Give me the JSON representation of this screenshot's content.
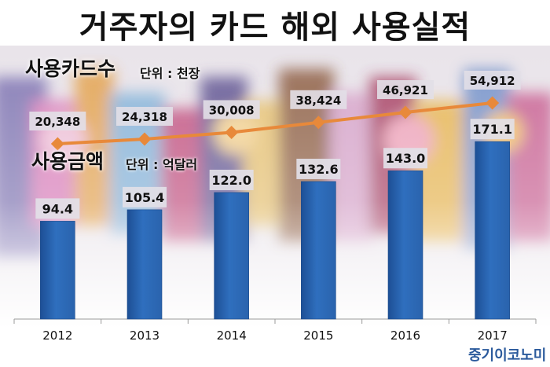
{
  "title": "거주자의 카드 해외 사용실적",
  "legend": {
    "cards_label": "사용카드수",
    "cards_unit": "단위 : 천장",
    "amount_label": "사용금액",
    "amount_unit": "단위 : 억달러"
  },
  "brand": "중기이코노미",
  "colors": {
    "bar": "#2f6fbe",
    "line": "#e8893a",
    "label_bg": "#e2dfe7"
  },
  "chart_data": {
    "type": "bar",
    "categories": [
      "2012",
      "2013",
      "2014",
      "2015",
      "2016",
      "2017"
    ],
    "series": [
      {
        "name": "사용금액",
        "type": "bar",
        "unit": "억달러",
        "values": [
          94.4,
          105.4,
          122.0,
          132.6,
          143.0,
          171.1
        ],
        "labels": [
          "94.4",
          "105.4",
          "122.0",
          "132.6",
          "143.0",
          "171.1"
        ]
      },
      {
        "name": "사용카드수",
        "type": "line",
        "unit": "천장",
        "values": [
          20348,
          24318,
          30008,
          38424,
          46921,
          54912
        ],
        "labels": [
          "20,348",
          "24,318",
          "30,008",
          "38,424",
          "46,921",
          "54,912"
        ]
      }
    ],
    "grid": false,
    "legend": "top-left"
  }
}
